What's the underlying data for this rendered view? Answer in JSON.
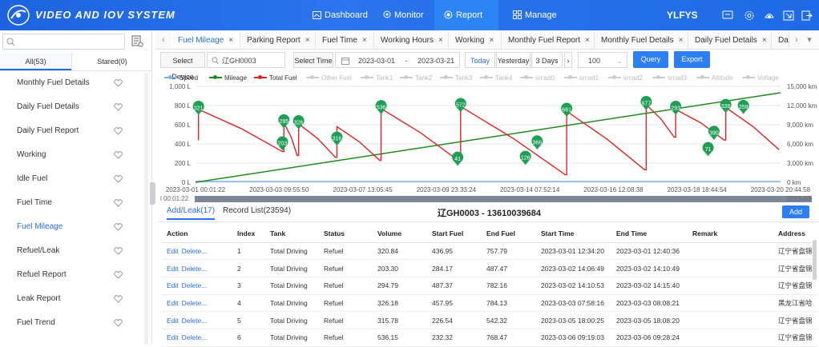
{
  "app": {
    "brand": "VIDEO AND IOV SYSTEM",
    "user": "YLFYS",
    "accent": "#1f6ae6"
  },
  "nav": [
    {
      "label": "Dashboard",
      "icon": "dashboard-icon"
    },
    {
      "label": "Monitor",
      "icon": "location-icon"
    },
    {
      "label": "Report",
      "icon": "report-icon",
      "active": true
    },
    {
      "label": "Manage",
      "icon": "grid-icon"
    }
  ],
  "sidebar": {
    "search_placeholder": "",
    "tabs": [
      "All(53)",
      "Stared(0)"
    ],
    "items": [
      "Monthly Fuel Details",
      "Daily Fuel Details",
      "Daily Fuel Report",
      "Working",
      "Idle Fuel",
      "Fuel Time",
      "Fuel Mileage",
      "Refuel/Leak",
      "Refuel Report",
      "Leak Report",
      "Fuel Trend"
    ],
    "active": "Fuel Mileage"
  },
  "tabs": [
    "Fuel Mileage",
    "Parking Report",
    "Fuel Time",
    "Working Hours",
    "Working",
    "Monthly Fuel Report",
    "Monthly Fuel Details",
    "Daily Fuel Details",
    "Da"
  ],
  "toolbar": {
    "select_device_label": "Select Device",
    "device": "辽GH0003",
    "select_time_label": "Select Time",
    "start": "2023-03-01",
    "dash": "-",
    "end": "2023-03-21",
    "today": "Today",
    "yesterday": "Yesterday",
    "days3": "3 Days",
    "page_size": "100",
    "query": "Query",
    "export": "Export"
  },
  "legend": [
    {
      "name": "Speed",
      "color": "#7fb3e8"
    },
    {
      "name": "Mileage",
      "color": "#1e8a1e"
    },
    {
      "name": "Total Fuel",
      "color": "#e02222"
    },
    {
      "name": "Other Fuel",
      "color": "#cccccc"
    },
    {
      "name": "Tank1",
      "color": "#cccccc"
    },
    {
      "name": "Tank2",
      "color": "#cccccc"
    },
    {
      "name": "Tank3",
      "color": "#cccccc"
    },
    {
      "name": "Tank4",
      "color": "#cccccc"
    },
    {
      "name": "srcad0",
      "color": "#cccccc"
    },
    {
      "name": "srcad1",
      "color": "#cccccc"
    },
    {
      "name": "srcad2",
      "color": "#cccccc"
    },
    {
      "name": "srcad3",
      "color": "#cccccc"
    },
    {
      "name": "Altitude",
      "color": "#cccccc"
    },
    {
      "name": "Voltage",
      "color": "#cccccc"
    }
  ],
  "chart_data": {
    "type": "line",
    "y_left_ticks": [
      "1,000 L",
      "800 L",
      "600 L",
      "400 L",
      "200 L",
      "0 L"
    ],
    "y_right_ticks": [
      "15,000 km",
      "12,000 km",
      "9,000 km",
      "6,000 km",
      "3,000 km",
      "0 km"
    ],
    "y_left_range": [
      0,
      1000
    ],
    "y_right_range": [
      0,
      15000
    ],
    "x_ticks": [
      "2023-03-01 00:01:22",
      "2023-03-03 09:55:50",
      "2023-03-07 13:05:45",
      "2023-03-09 23:33:24",
      "2023-03-14 07:52:14",
      "2023-03-16 12:08:38",
      "2023-03-18 18:44:54",
      "2023-03-20 20:44:58"
    ],
    "x_range_days": [
      0,
      19.86
    ],
    "mileage": {
      "name": "Mileage",
      "x": [
        0,
        19.86
      ],
      "y": [
        0,
        14000
      ]
    },
    "fuel_peaks": [
      {
        "x": 0.1,
        "label": "321",
        "from": 440,
        "to": 760
      },
      {
        "x": 3.0,
        "label": "295",
        "from": 320,
        "to": 620
      },
      {
        "x": 3.5,
        "label": "326",
        "from": 280,
        "to": 610
      },
      {
        "x": 4.8,
        "label": "316",
        "from": 260,
        "to": 580
      },
      {
        "x": 6.3,
        "label": "536",
        "from": 230,
        "to": 768
      },
      {
        "x": 9.0,
        "label": "572",
        "from": 220,
        "to": 790
      },
      {
        "x": 12.6,
        "label": "661",
        "from": 80,
        "to": 740
      },
      {
        "x": 15.3,
        "label": "677",
        "from": 130,
        "to": 810
      },
      {
        "x": 16.3,
        "label": "293",
        "from": 470,
        "to": 760
      },
      {
        "x": 18.0,
        "label": "336",
        "from": 440,
        "to": 780
      }
    ],
    "markers": [
      {
        "x": 0.1,
        "label": "321"
      },
      {
        "x": 2.95,
        "label": "203"
      },
      {
        "x": 3.0,
        "label": "295"
      },
      {
        "x": 3.5,
        "label": "326"
      },
      {
        "x": 4.8,
        "label": "316"
      },
      {
        "x": 6.3,
        "label": "536"
      },
      {
        "x": 8.9,
        "label": "41"
      },
      {
        "x": 9.0,
        "label": "572"
      },
      {
        "x": 11.2,
        "label": "126"
      },
      {
        "x": 11.6,
        "label": "366"
      },
      {
        "x": 12.6,
        "label": "661"
      },
      {
        "x": 15.3,
        "label": "677"
      },
      {
        "x": 16.3,
        "label": "293"
      },
      {
        "x": 17.4,
        "label": "71"
      },
      {
        "x": 17.6,
        "label": "390"
      },
      {
        "x": 18.0,
        "label": "336"
      },
      {
        "x": 18.6,
        "label": "259"
      }
    ]
  },
  "timeline": {
    "left": "l 00:01:22",
    "right": "2023-03-"
  },
  "section": {
    "tab_add": "Add/Leak(17)",
    "tab_records": "Record List(23594)",
    "title": "辽GH0003 - 13610039684",
    "add": "Add"
  },
  "table": {
    "headers": [
      "Action",
      "Index",
      "Tank",
      "Status",
      "Volume",
      "Start Fuel",
      "End Fuel",
      "Start Time",
      "End Time",
      "Remark",
      "Address"
    ],
    "rows": [
      [
        "1",
        "Total Driving",
        "Refuel",
        "320.84",
        "436.95",
        "757.79",
        "2023-03-01 12:34:20",
        "2023-03-01 12:40:36",
        "",
        "辽宁省盘锦"
      ],
      [
        "2",
        "Total Driving",
        "Refuel",
        "203.30",
        "284.17",
        "487.47",
        "2023-03-02 14:06:49",
        "2023-03-02 14:10:49",
        "",
        "辽宁省盘锦"
      ],
      [
        "3",
        "Total Driving",
        "Refuel",
        "294.79",
        "487.37",
        "782.16",
        "2023-03-02 14:10:53",
        "2023-03-02 14:15:40",
        "",
        "辽宁省盘锦"
      ],
      [
        "4",
        "Total Driving",
        "Refuel",
        "326.18",
        "457.95",
        "784.13",
        "2023-03-03 07:58:16",
        "2023-03-03 08:08:21",
        "",
        "黑龙江省哈"
      ],
      [
        "5",
        "Total Driving",
        "Refuel",
        "315.78",
        "226.54",
        "542.32",
        "2023-03-05 18:00:25",
        "2023-03-05 18:08:20",
        "",
        "辽宁省盘锦"
      ],
      [
        "6",
        "Total Driving",
        "Refuel",
        "536.15",
        "232.32",
        "768.47",
        "2023-03-06 09:19:03",
        "2023-03-06 09:28:24",
        "",
        "辽宁省盘锦"
      ]
    ],
    "edit": "Edit",
    "delete": "Delete..."
  }
}
